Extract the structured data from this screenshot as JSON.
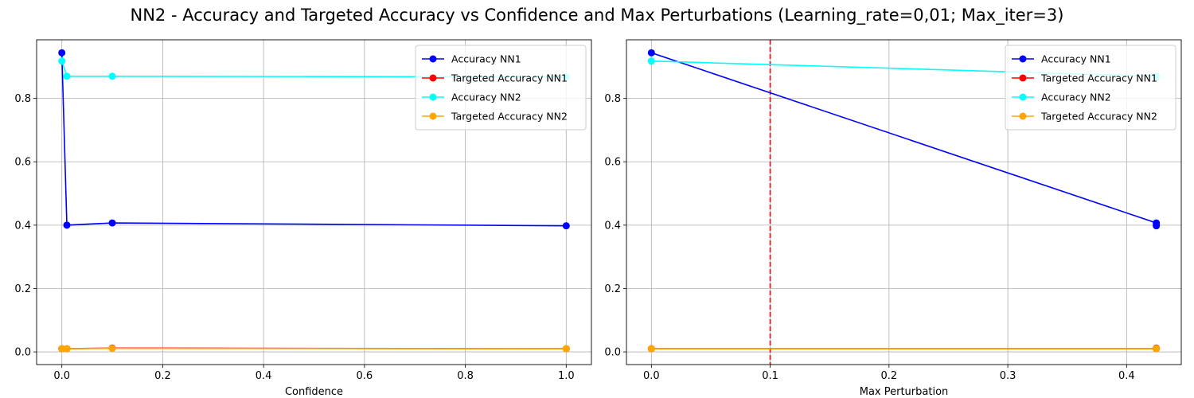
{
  "figure": {
    "title": "NN2 - Accuracy and Targeted Accuracy vs Confidence and Max Perturbations (Learning_rate=0,01; Max_iter=3)"
  },
  "chart_data": [
    {
      "type": "line",
      "xlabel": "Confidence",
      "ylabel": "",
      "xlim": [
        -0.05,
        1.05
      ],
      "ylim": [
        -0.04,
        0.985
      ],
      "xticks": [
        "0.0",
        "0.2",
        "0.4",
        "0.6",
        "0.8",
        "1.0"
      ],
      "xtick_values": [
        0.0,
        0.2,
        0.4,
        0.6,
        0.8,
        1.0
      ],
      "yticks": [
        "0.0",
        "0.2",
        "0.4",
        "0.6",
        "0.8"
      ],
      "ytick_values": [
        0.0,
        0.2,
        0.4,
        0.6,
        0.8
      ],
      "grid": true,
      "legend_position": "top-right",
      "series": [
        {
          "name": "Accuracy NN1",
          "color": "#0000ff",
          "x": [
            0.0,
            0.01,
            0.1,
            1.0
          ],
          "y": [
            0.944,
            0.4,
            0.407,
            0.398
          ]
        },
        {
          "name": "Targeted Accuracy NN1",
          "color": "#ff0000",
          "x": [
            0.0,
            0.01,
            0.1,
            1.0
          ],
          "y": [
            0.01,
            0.01,
            0.012,
            0.01
          ]
        },
        {
          "name": "Accuracy NN2",
          "color": "#00ffff",
          "x": [
            0.0,
            0.01,
            0.1,
            1.0
          ],
          "y": [
            0.918,
            0.87,
            0.87,
            0.868
          ]
        },
        {
          "name": "Targeted Accuracy NN2",
          "color": "#ffa500",
          "x": [
            0.0,
            0.01,
            0.1,
            1.0
          ],
          "y": [
            0.01,
            0.01,
            0.011,
            0.01
          ]
        }
      ],
      "vlines": []
    },
    {
      "type": "line",
      "xlabel": "Max Perturbation",
      "ylabel": "",
      "xlim": [
        -0.021,
        0.446
      ],
      "ylim": [
        -0.04,
        0.985
      ],
      "xticks": [
        "0.0",
        "0.1",
        "0.2",
        "0.3",
        "0.4"
      ],
      "xtick_values": [
        0.0,
        0.1,
        0.2,
        0.3,
        0.4
      ],
      "yticks": [
        "0.0",
        "0.2",
        "0.4",
        "0.6",
        "0.8"
      ],
      "ytick_values": [
        0.0,
        0.2,
        0.4,
        0.6,
        0.8
      ],
      "grid": true,
      "legend_position": "top-right",
      "series": [
        {
          "name": "Accuracy NN1",
          "color": "#0000ff",
          "x": [
            0.0,
            0.425,
            0.425,
            0.425
          ],
          "y": [
            0.944,
            0.407,
            0.4,
            0.398
          ]
        },
        {
          "name": "Targeted Accuracy NN1",
          "color": "#ff0000",
          "x": [
            0.0,
            0.425,
            0.425,
            0.425
          ],
          "y": [
            0.01,
            0.01,
            0.012,
            0.01
          ]
        },
        {
          "name": "Accuracy NN2",
          "color": "#00ffff",
          "x": [
            0.0,
            0.425,
            0.425,
            0.425
          ],
          "y": [
            0.918,
            0.87,
            0.87,
            0.868
          ]
        },
        {
          "name": "Targeted Accuracy NN2",
          "color": "#ffa500",
          "x": [
            0.0,
            0.425,
            0.425,
            0.425
          ],
          "y": [
            0.01,
            0.01,
            0.011,
            0.01
          ]
        }
      ],
      "vlines": [
        {
          "x": 0.1,
          "color": "#ff0000",
          "style": "dashed"
        }
      ]
    }
  ]
}
